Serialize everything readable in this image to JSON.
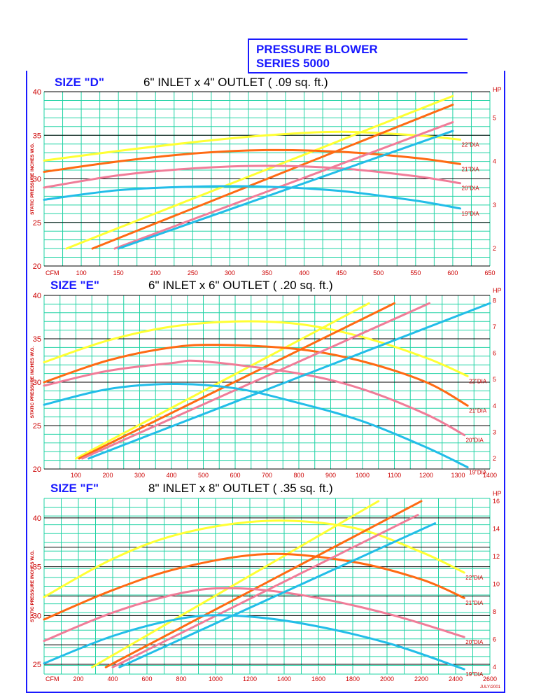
{
  "header": {
    "title_line1": "PRESSURE BLOWER",
    "title_line2": "SERIES 5000",
    "date": "JULY/2001"
  },
  "colors": {
    "22": "#ffff33",
    "21": "#ff6a13",
    "20": "#f07c98",
    "19": "#22bde8",
    "grid": "#22d3a5",
    "black_lines": "#000000",
    "text_red": "#cc0000",
    "accent_blue": "#1a1aff"
  },
  "chart_data": [
    {
      "type": "line",
      "size_label": "SIZE \"D\"",
      "inlet_label": "6\" INLET x 4\" OUTLET   ( .09 sq. ft.)",
      "x_axis_label": "CFM",
      "y_axis_label": "STATIC PRESSURE INCHES W.G.",
      "hp_axis_label": "HP",
      "xlim": [
        50,
        650
      ],
      "ylim": [
        20,
        40
      ],
      "hp_lim": [
        1.6,
        5.6
      ],
      "x_ticks": [
        100,
        150,
        200,
        250,
        300,
        350,
        400,
        450,
        500,
        550,
        600,
        650
      ],
      "x_tick_labels": [
        "100",
        "150",
        "200",
        "250",
        "300",
        "350",
        "400",
        "450",
        "500",
        "550",
        "600",
        "650"
      ],
      "y_ticks": [
        20,
        25,
        30,
        35,
        40
      ],
      "hp_ticks": [
        2,
        3,
        4,
        5
      ],
      "series": [
        {
          "name": "22\"DIA",
          "diameter": "22",
          "pressure": [
            [
              50,
              32.1
            ],
            [
              150,
              33.2
            ],
            [
              250,
              34.2
            ],
            [
              350,
              35.0
            ],
            [
              450,
              35.4
            ],
            [
              550,
              35.0
            ],
            [
              610,
              34.5
            ]
          ],
          "hp": [
            [
              80,
              2.0
            ],
            [
              600,
              5.5
            ]
          ]
        },
        {
          "name": "21\"DIA",
          "diameter": "21",
          "pressure": [
            [
              50,
              30.8
            ],
            [
              150,
              32.0
            ],
            [
              250,
              32.9
            ],
            [
              350,
              33.3
            ],
            [
              450,
              33.1
            ],
            [
              550,
              32.4
            ],
            [
              610,
              31.7
            ]
          ],
          "hp": [
            [
              115,
              2.0
            ],
            [
              600,
              5.3
            ]
          ]
        },
        {
          "name": "20\"DIA",
          "diameter": "20",
          "pressure": [
            [
              50,
              29.0
            ],
            [
              150,
              30.4
            ],
            [
              250,
              31.2
            ],
            [
              350,
              31.5
            ],
            [
              450,
              31.2
            ],
            [
              550,
              30.3
            ],
            [
              610,
              29.5
            ]
          ],
          "hp": [
            [
              145,
              2.0
            ],
            [
              600,
              4.9
            ]
          ]
        },
        {
          "name": "19\"DIA",
          "diameter": "19",
          "pressure": [
            [
              50,
              27.6
            ],
            [
              150,
              28.7
            ],
            [
              250,
              29.1
            ],
            [
              350,
              29.1
            ],
            [
              450,
              28.6
            ],
            [
              550,
              27.5
            ],
            [
              610,
              26.6
            ]
          ],
          "hp": [
            [
              150,
              2.0
            ],
            [
              600,
              4.7
            ]
          ]
        }
      ]
    },
    {
      "type": "line",
      "size_label": "SIZE \"E\"",
      "inlet_label": "6\" INLET x 6\" OUTLET   ( .20 sq. ft.)",
      "x_axis_label": "",
      "y_axis_label": "STATIC PRESSURE INCHES W.G.",
      "hp_axis_label": "HP",
      "xlim": [
        0,
        1400
      ],
      "ylim": [
        20,
        40
      ],
      "hp_lim": [
        1.6,
        8.2
      ],
      "x_ticks": [
        100,
        200,
        300,
        400,
        500,
        600,
        700,
        800,
        900,
        1000,
        1100,
        1200,
        1300,
        1400
      ],
      "x_tick_labels": [
        "100",
        "200",
        "300",
        "400",
        "500",
        "600",
        "700",
        "800",
        "900",
        "1000",
        "1100",
        "1200",
        "1300",
        "1400"
      ],
      "y_ticks": [
        20,
        25,
        30,
        35,
        40
      ],
      "hp_ticks": [
        2,
        3,
        4,
        5,
        6,
        7,
        8
      ],
      "series": [
        {
          "name": "22\"DIA",
          "diameter": "22",
          "pressure": [
            [
              0,
              32.3
            ],
            [
              200,
              34.8
            ],
            [
              400,
              36.4
            ],
            [
              600,
              37.0
            ],
            [
              800,
              36.7
            ],
            [
              1000,
              35.2
            ],
            [
              1200,
              32.8
            ],
            [
              1330,
              30.7
            ]
          ],
          "hp": [
            [
              100,
              2.0
            ],
            [
              1020,
              7.9
            ]
          ]
        },
        {
          "name": "21\"DIA",
          "diameter": "21",
          "pressure": [
            [
              0,
              30.0
            ],
            [
              200,
              32.5
            ],
            [
              400,
              34.0
            ],
            [
              550,
              34.3
            ],
            [
              800,
              33.8
            ],
            [
              1000,
              32.4
            ],
            [
              1200,
              30.0
            ],
            [
              1330,
              27.3
            ]
          ],
          "hp": [
            [
              110,
              2.0
            ],
            [
              1100,
              7.9
            ]
          ]
        },
        {
          "name": "20\"DIA",
          "diameter": "20",
          "pressure": [
            [
              0,
              29.6
            ],
            [
              200,
              31.3
            ],
            [
              400,
              32.2
            ],
            [
              500,
              32.4
            ],
            [
              800,
              31.0
            ],
            [
              1000,
              29.2
            ],
            [
              1200,
              26.3
            ],
            [
              1320,
              23.9
            ]
          ],
          "hp": [
            [
              120,
              2.0
            ],
            [
              1210,
              7.9
            ]
          ]
        },
        {
          "name": "19\"DIA",
          "diameter": "19",
          "pressure": [
            [
              0,
              27.4
            ],
            [
              200,
              29.2
            ],
            [
              400,
              29.8
            ],
            [
              600,
              29.3
            ],
            [
              800,
              27.6
            ],
            [
              1000,
              25.5
            ],
            [
              1200,
              22.5
            ],
            [
              1330,
              20.2
            ]
          ],
          "hp": [
            [
              140,
              2.0
            ],
            [
              1400,
              7.9
            ]
          ]
        }
      ]
    },
    {
      "type": "line",
      "size_label": "SIZE \"F\"",
      "inlet_label": "8\" INLET x 8\" OUTLET   ( .35 sq. ft.)",
      "x_axis_label": "CFM",
      "y_axis_label": "STATIC PRESSURE INCHES W.G.",
      "hp_axis_label": "HP",
      "xlim": [
        0,
        2600
      ],
      "ylim": [
        24,
        42
      ],
      "hp_lim": [
        3.5,
        16.2
      ],
      "x_ticks": [
        200,
        400,
        600,
        800,
        1000,
        1200,
        1400,
        1600,
        1800,
        2000,
        2200,
        2400,
        2600
      ],
      "x_tick_labels": [
        "200",
        "400",
        "600",
        "800",
        "1000",
        "1200",
        "1400",
        "1600",
        "1800",
        "2000",
        "2200",
        "2400",
        "2600"
      ],
      "y_ticks": [
        25,
        30,
        35,
        40
      ],
      "hp_ticks": [
        4,
        6,
        8,
        10,
        12,
        14,
        16
      ],
      "series": [
        {
          "name": "22\"DIA",
          "diameter": "22",
          "pressure": [
            [
              0,
              31.9
            ],
            [
              400,
              35.8
            ],
            [
              800,
              38.4
            ],
            [
              1300,
              39.7
            ],
            [
              1800,
              39.0
            ],
            [
              2200,
              36.5
            ],
            [
              2450,
              34.4
            ]
          ],
          "hp": [
            [
              280,
              4.0
            ],
            [
              1950,
              16.0
            ]
          ]
        },
        {
          "name": "21\"DIA",
          "diameter": "21",
          "pressure": [
            [
              0,
              29.6
            ],
            [
              400,
              32.6
            ],
            [
              800,
              34.9
            ],
            [
              1300,
              36.3
            ],
            [
              1800,
              35.5
            ],
            [
              2200,
              33.7
            ],
            [
              2450,
              31.8
            ]
          ],
          "hp": [
            [
              360,
              4.0
            ],
            [
              2200,
              16.0
            ]
          ]
        },
        {
          "name": "20\"DIA",
          "diameter": "20",
          "pressure": [
            [
              0,
              27.4
            ],
            [
              400,
              30.3
            ],
            [
              800,
              32.3
            ],
            [
              1100,
              32.8
            ],
            [
              1500,
              32.1
            ],
            [
              2000,
              30.2
            ],
            [
              2450,
              27.8
            ]
          ],
          "hp": [
            [
              400,
              4.0
            ],
            [
              2180,
              15.0
            ]
          ]
        },
        {
          "name": "19\"DIA",
          "diameter": "19",
          "pressure": [
            [
              0,
              25.1
            ],
            [
              400,
              27.9
            ],
            [
              800,
              29.7
            ],
            [
              1100,
              30.0
            ],
            [
              1500,
              29.2
            ],
            [
              2000,
              27.2
            ],
            [
              2450,
              24.5
            ]
          ],
          "hp": [
            [
              440,
              4.0
            ],
            [
              2280,
              14.4
            ]
          ]
        }
      ]
    }
  ]
}
